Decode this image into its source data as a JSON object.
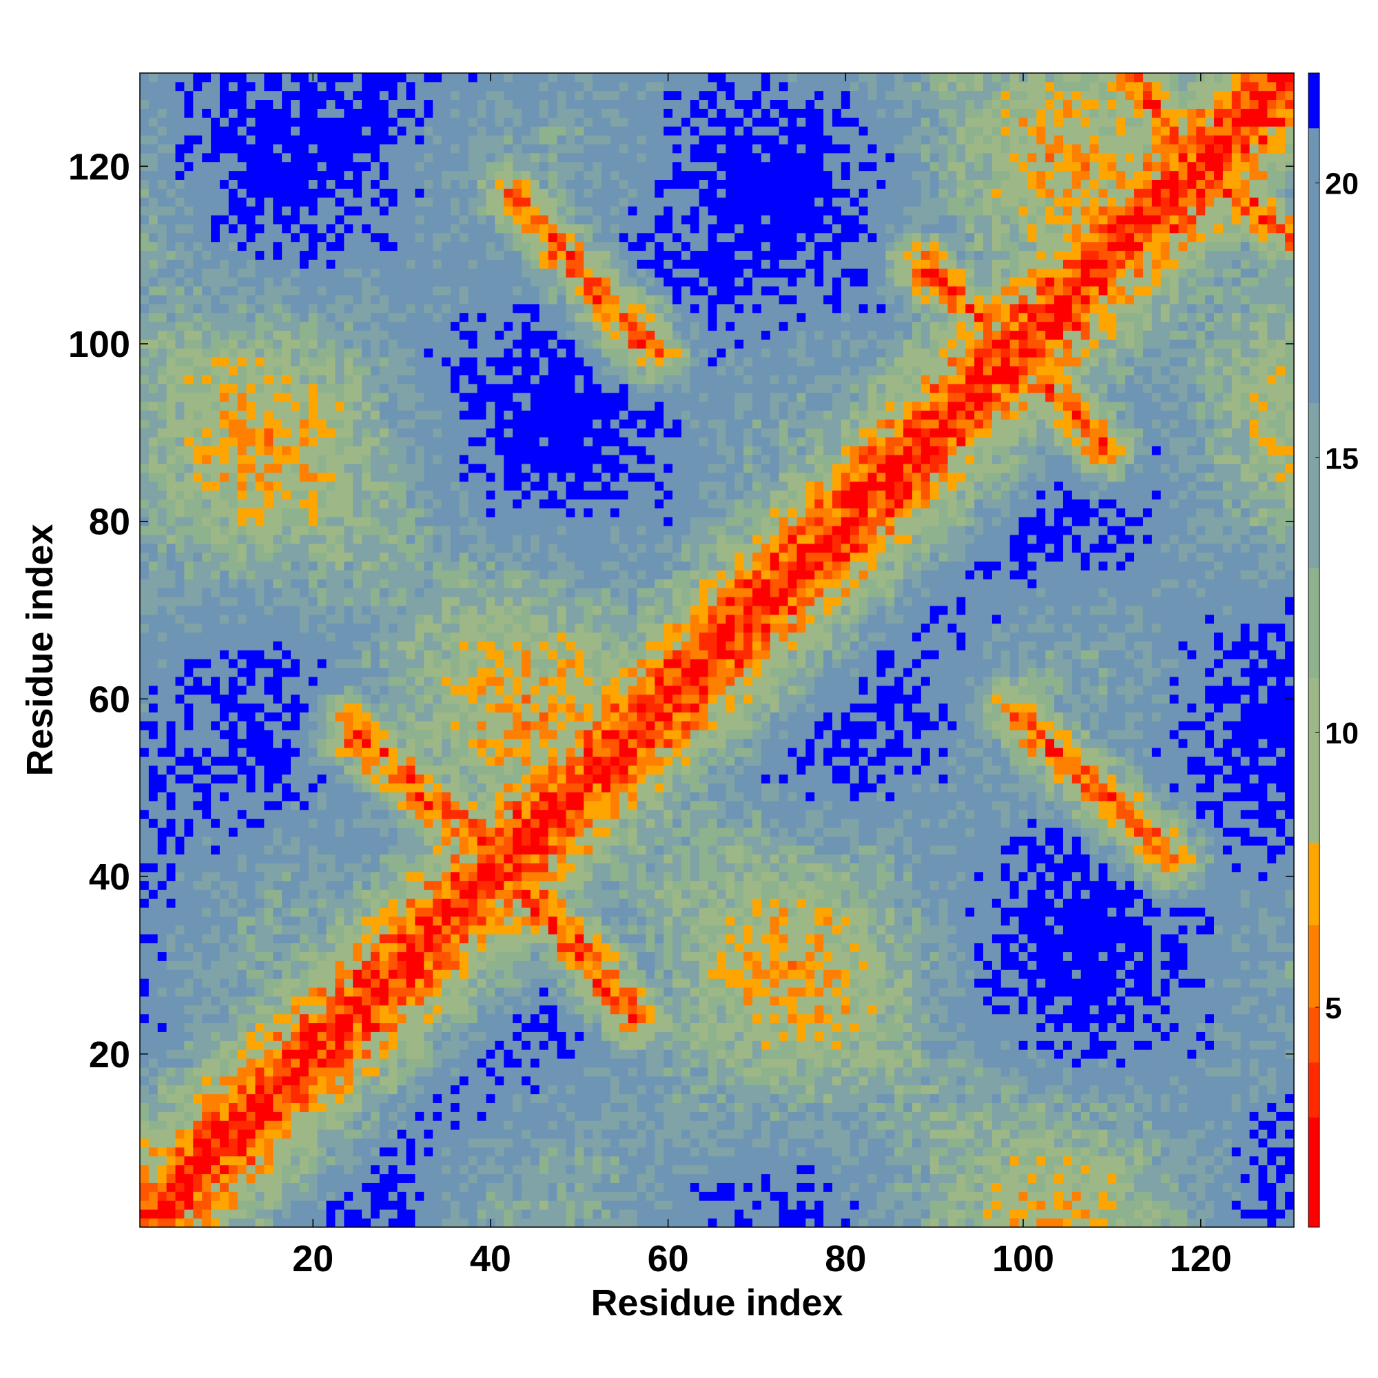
{
  "chart_data": {
    "type": "heatmap",
    "title": "",
    "xlabel": "Residue index",
    "ylabel": "Residue index",
    "n_residues": 130,
    "xlim": [
      1,
      130
    ],
    "ylim": [
      1,
      130
    ],
    "xticks": [
      "20",
      "40",
      "60",
      "80",
      "100",
      "120"
    ],
    "yticks": [
      "20",
      "40",
      "60",
      "80",
      "100",
      "120"
    ],
    "x_tick_values": [
      20,
      40,
      60,
      80,
      100,
      120
    ],
    "y_tick_values": [
      20,
      40,
      60,
      80,
      100,
      120
    ],
    "colorbar": {
      "range": [
        1,
        22
      ],
      "ticks": [
        "5",
        "10",
        "15",
        "20"
      ],
      "tick_values": [
        5,
        10,
        15,
        20
      ],
      "colors": [
        "#ff0000",
        "#ff2a00",
        "#ff5500",
        "#ff7f00",
        "#ffa500",
        "#9db886",
        "#8fb28e",
        "#7fa3a6",
        "#6f95b5",
        "#0000ff"
      ],
      "boundaries": [
        1,
        3,
        4,
        5,
        6.5,
        8,
        11,
        13,
        16,
        21,
        22
      ]
    },
    "grid": false,
    "legend": "none",
    "features": {
      "main_diagonal": "distance ~1-4 along i=j",
      "antiparallel_contacts": [
        {
          "from": [
            24,
            57
          ],
          "to": [
            42,
            42
          ]
        },
        {
          "from": [
            42,
            40
          ],
          "to": [
            56,
            24
          ]
        },
        {
          "from": [
            43,
            116
          ],
          "to": [
            59,
            99
          ]
        },
        {
          "from": [
            89,
            109
          ],
          "to": [
            101,
            97
          ]
        },
        {
          "from": [
            102,
            96
          ],
          "to": [
            109,
            88
          ]
        },
        {
          "from": [
            100,
            57
          ],
          "to": [
            117,
            42
          ]
        },
        {
          "from": [
            112,
            130
          ],
          "to": [
            122,
            119
          ]
        },
        {
          "from": [
            119,
            120
          ],
          "to": [
            130,
            112
          ]
        }
      ],
      "parallel_contacts": [
        {
          "from": [
            2,
            4
          ],
          "to": [
            24,
            26
          ]
        },
        {
          "from": [
            60,
            64
          ],
          "to": [
            88,
            92
          ]
        }
      ]
    }
  }
}
